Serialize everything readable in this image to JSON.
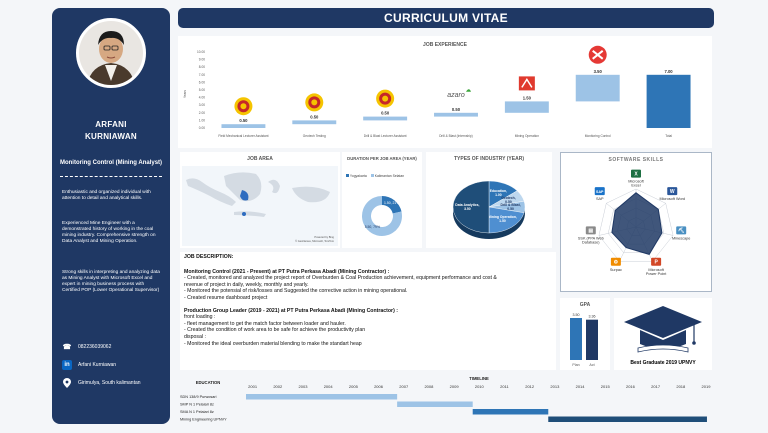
{
  "header": {
    "title": "CURRICULUM VITAE"
  },
  "profile": {
    "first_name": "ARFANI",
    "last_name": "KURNIAWAN",
    "role": "Monitoring Control (Mining Analyst)",
    "separator": "===============================",
    "para1": "Enthusiastic and organized individual with attention to detail and analytical skills.",
    "para2": "Experienced Mine Engineer with a demonstrated history of working in the coal mining industry. Comprehensive strength on Data Analyst and Mining Operation.",
    "para3": "Strong skills in interpreting and analyzing data as Mining Analyst with Microsoft Excel and expert in mining business process with Certified POP (Lower Operational Supervisor)",
    "phone": "082236039062",
    "linkedin": "Arfani Kurniawan",
    "location": "Girimulya, South kalimantan"
  },
  "job_experience": {
    "title": "JOB EXPERIENCE",
    "ylabel": "Years",
    "yticks": [
      "0.00",
      "1.00",
      "2.00",
      "3.00",
      "4.00",
      "5.00",
      "6.00",
      "7.00",
      "8.00",
      "9.00",
      "10.00"
    ],
    "categories": [
      "Field Mechanical Lecturer Assistant",
      "Geotech Testing",
      "Drill & Blast Lecturer Assistant",
      "Drill & Blast (Internship)",
      "Mining Operation",
      "Monitoring Control",
      "Total"
    ],
    "values": [
      0.5,
      0.5,
      0.5,
      0.5,
      1.5,
      3.5,
      7.0
    ],
    "labels": [
      "0.50",
      "0.50",
      "0.50",
      "0.50",
      "1.50",
      "3.50",
      "7.00"
    ],
    "logo_text": "azaro"
  },
  "job_area": {
    "title": "JOB AREA",
    "credit": "Powered by Bing\n© GeoNames, Microsoft, TomTom"
  },
  "duration": {
    "title": "DURATION PER JOB AREA (YEAR)",
    "legend": [
      "Yogyakarta",
      "Kalimantan Selatan"
    ],
    "slices": [
      {
        "label": "1.50, 21%",
        "value": 1.5
      },
      {
        "label": "5.50, 79%",
        "value": 5.5
      }
    ]
  },
  "industry": {
    "title": "TYPES OF INDUSTRY (YEAR)",
    "slices": [
      {
        "label": "Education,",
        "value_label": "1.00",
        "value": 1.0
      },
      {
        "label": "Geotech,",
        "value_label": "0.50",
        "value": 0.5
      },
      {
        "label": "Drill & Blast,",
        "value_label": "0.50",
        "value": 0.5
      },
      {
        "label": "Mining Operation,",
        "value_label": "1.50",
        "value": 1.5
      },
      {
        "label": "Data Analytics,",
        "value_label": "3.50",
        "value": 3.5
      }
    ]
  },
  "skills": {
    "title": "SOFTWARE SKILLS",
    "items": [
      "Microsoft Excel",
      "Microsoft Word",
      "Minescape",
      "Microsoft Power Point",
      "Surpac",
      "SSK (PPA Web Database)",
      "SAP"
    ],
    "levels": [
      0.9,
      0.75,
      0.7,
      0.8,
      0.6,
      0.65,
      0.7
    ]
  },
  "gpa": {
    "title": "GPA",
    "categories": [
      "Plan",
      "Act"
    ],
    "values": [
      3.5,
      3.36
    ],
    "labels": [
      "3.50",
      "3.36"
    ]
  },
  "best_graduate": "Best Graduate 2019 UPNVY",
  "description": {
    "title": "JOB DESCRIPTION:",
    "job1_title": "Monitoring Control (2021 - Present) at PT Putra Perkasa Abadi (Mining Contractor) :",
    "job1_l1": "- Created, monitored and analyzed the project report of Overburden & Coal Production achievement, equipment performance and cost &",
    "job1_l2": "revenue of project in daily, weekly, monthly and yearly.",
    "job1_l3": "- Monitored the potensial of risk/losses and Suggested the corrective action in mining operational.",
    "job1_l4": "- Created resume dashboard project",
    "job2_title": "Production Group Leader (2019 - 2021) at PT Putra Perkasa Abadi (Mining Contractor) :",
    "job2_l1": "front loading :",
    "job2_l2": "- fleet management to get the match factor between loader and hauler.",
    "job2_l3": "- Created the condition of work area to be safe for achieve the productivity plan",
    "job2_l4": "disposal :",
    "job2_l5": "- Monitored the ideal overburden material blending to make the standart heap"
  },
  "timeline": {
    "title": "TIMELINE",
    "education_label": "EDUCATION",
    "years": [
      "2001",
      "2002",
      "2003",
      "2004",
      "2005",
      "2006",
      "2007",
      "2008",
      "2009",
      "2010",
      "2011",
      "2012",
      "2013",
      "2014",
      "2015",
      "2016",
      "2017",
      "2018",
      "2019"
    ],
    "rows": [
      {
        "label": "SDN 138/9 Purwosari",
        "start": 2001,
        "end": 2007,
        "color": "#9dc3e6"
      },
      {
        "label": "SMP N 1 Pelaiari 8z",
        "start": 2007,
        "end": 2010,
        "color": "#9dc3e6"
      },
      {
        "label": "SMA N 1 Pelaiari 8z",
        "start": 2010,
        "end": 2013,
        "color": "#2e75b6"
      },
      {
        "label": "Mining Engineering UPNVY",
        "start": 2013,
        "end": 2019.3,
        "color": "#1f4e79"
      }
    ]
  }
}
